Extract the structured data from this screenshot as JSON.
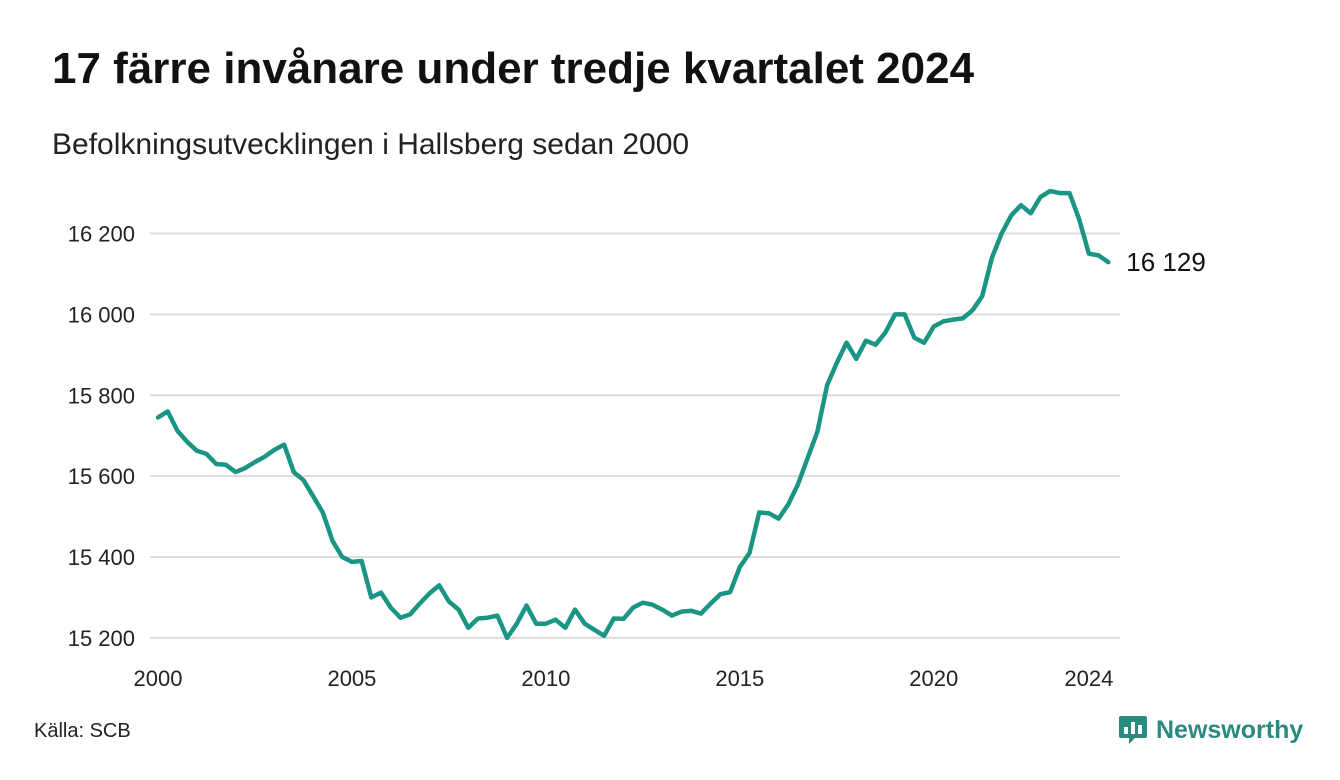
{
  "title": "17 färre invånare under tredje kvartalet 2024",
  "subtitle": "Befolkningsutvecklingen i Hallsberg sedan 2000",
  "source": "Källa: SCB",
  "brand": {
    "name": "Newsworthy",
    "icon": "bar-chart-logo-icon",
    "color": "#2a8a80"
  },
  "chart_data": {
    "type": "line",
    "x_start": 2000,
    "x_step": 0.25,
    "xlim": [
      2000,
      2024.75
    ],
    "ylim": [
      15170,
      16320
    ],
    "xticks": [
      2000,
      2005,
      2010,
      2015,
      2020,
      2024
    ],
    "yticks": [
      15200,
      15400,
      15600,
      15800,
      16000,
      16200
    ],
    "ytick_labels": [
      "15 200",
      "15 400",
      "15 600",
      "15 800",
      "16 000",
      "16 200"
    ],
    "grid": true,
    "line_color": "#1a9584",
    "end_label": "16 129",
    "series": [
      {
        "values": [
          15745,
          15760,
          15712,
          15685,
          15663,
          15655,
          15630,
          15628,
          15610,
          15620,
          15635,
          15648,
          15665,
          15678,
          15610,
          15590,
          15550,
          15510,
          15440,
          15400,
          15388,
          15390,
          15300,
          15312,
          15275,
          15250,
          15258,
          15285,
          15310,
          15330,
          15290,
          15270,
          15225,
          15248,
          15250,
          15255,
          15200,
          15235,
          15280,
          15235,
          15235,
          15245,
          15225,
          15270,
          15235,
          15220,
          15205,
          15248,
          15247,
          15275,
          15287,
          15282,
          15270,
          15255,
          15265,
          15267,
          15260,
          15285,
          15308,
          15313,
          15375,
          15410,
          15510,
          15508,
          15495,
          15530,
          15580,
          15645,
          15710,
          15825,
          15880,
          15930,
          15890,
          15935,
          15925,
          15955,
          16000,
          16000,
          15942,
          15930,
          15970,
          15983,
          15987,
          15990,
          16010,
          16045,
          16140,
          16200,
          16245,
          16270,
          16250,
          16290,
          16305,
          16300,
          16300,
          16235,
          16150,
          16146,
          16129
        ]
      }
    ]
  }
}
